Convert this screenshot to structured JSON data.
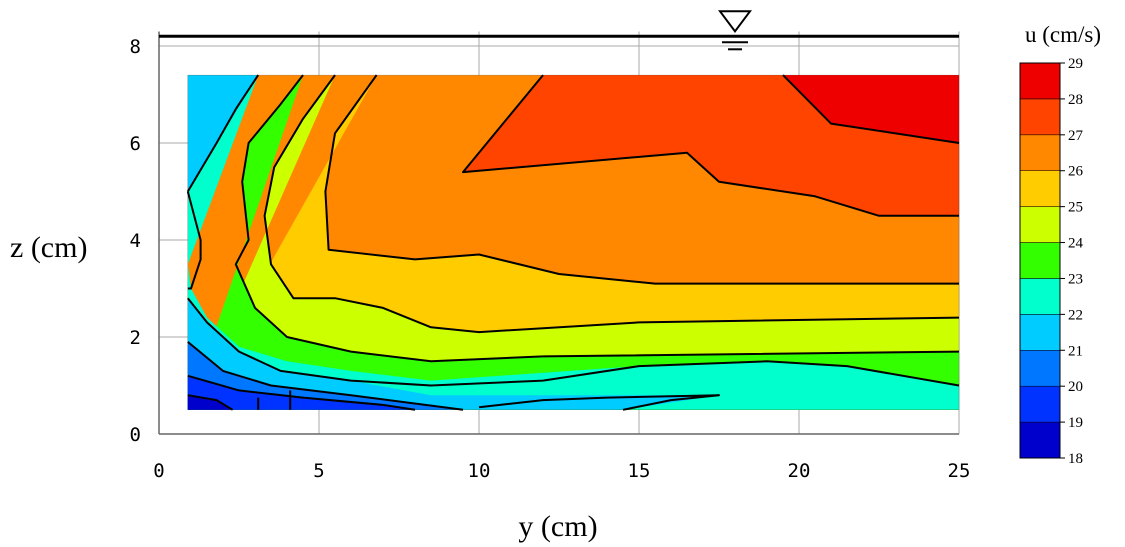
{
  "chart_data": {
    "type": "contour",
    "xlabel": "y (cm)",
    "ylabel": "z (cm)",
    "xlim": [
      0,
      25
    ],
    "ylim": [
      0,
      8.3
    ],
    "x_ticks": [
      "0",
      "5",
      "10",
      "15",
      "20",
      "25"
    ],
    "y_ticks": [
      "0",
      "2",
      "4",
      "6",
      "8"
    ],
    "grid": true,
    "water_surface_z": 8.2,
    "water_surface_symbol_y": 18,
    "data_extent": {
      "x": [
        0.9,
        25
      ],
      "y": [
        0.5,
        7.4
      ]
    },
    "colorbar": {
      "title": "u (cm/s)",
      "levels": [
        "18",
        "19",
        "20",
        "21",
        "22",
        "23",
        "24",
        "25",
        "26",
        "27",
        "28",
        "29"
      ],
      "colors": [
        "#0000cc",
        "#0033ff",
        "#0077ff",
        "#00ccff",
        "#00ffcc",
        "#33ff00",
        "#ccff00",
        "#ffcc00",
        "#ff8800",
        "#ff4400",
        "#ee0000"
      ]
    },
    "regions": [
      {
        "value": 26.5,
        "color": "#ff8800",
        "points": [
          [
            0.9,
            0.5
          ],
          [
            25,
            0.5
          ],
          [
            25,
            7.4
          ],
          [
            0.9,
            7.4
          ]
        ]
      },
      {
        "value": 27.5,
        "color": "#ff4400",
        "points": [
          [
            12,
            7.4
          ],
          [
            19.5,
            7.4
          ],
          [
            21,
            6.4
          ],
          [
            25,
            6.0
          ],
          [
            25,
            4.5
          ],
          [
            22.5,
            4.5
          ],
          [
            20.5,
            4.9
          ],
          [
            17.5,
            5.2
          ],
          [
            16.5,
            5.8
          ],
          [
            9.5,
            5.4
          ]
        ]
      },
      {
        "value": 28.5,
        "color": "#ee0000",
        "points": [
          [
            19.5,
            7.4
          ],
          [
            25,
            7.4
          ],
          [
            25,
            6.0
          ],
          [
            21,
            6.4
          ]
        ]
      },
      {
        "value": 25.5,
        "color": "#ffcc00",
        "points": [
          [
            6.8,
            7.4
          ],
          [
            5.5,
            6.2
          ],
          [
            5.2,
            5.0
          ],
          [
            5.3,
            3.8
          ],
          [
            8,
            3.6
          ],
          [
            10,
            3.7
          ],
          [
            12.5,
            3.3
          ],
          [
            15.5,
            3.1
          ],
          [
            25,
            3.1
          ],
          [
            25,
            0.5
          ],
          [
            0.9,
            0.5
          ]
        ]
      },
      {
        "value": 24.5,
        "color": "#ccff00",
        "points": [
          [
            5.5,
            7.4
          ],
          [
            4.5,
            6.5
          ],
          [
            3.6,
            5.5
          ],
          [
            3.3,
            4.5
          ],
          [
            3.5,
            3.5
          ],
          [
            4.2,
            2.8
          ],
          [
            5.5,
            2.8
          ],
          [
            7,
            2.6
          ],
          [
            8.5,
            2.2
          ],
          [
            10,
            2.1
          ],
          [
            15,
            2.3
          ],
          [
            25,
            2.4
          ],
          [
            25,
            0.5
          ],
          [
            0.9,
            0.5
          ]
        ]
      },
      {
        "value": 23.5,
        "color": "#33ff00",
        "points": [
          [
            4.5,
            7.4
          ],
          [
            3.8,
            6.8
          ],
          [
            2.8,
            6.0
          ],
          [
            2.6,
            5.2
          ],
          [
            2.8,
            4.0
          ],
          [
            2.4,
            3.5
          ],
          [
            3.0,
            2.6
          ],
          [
            4.0,
            2.0
          ],
          [
            6.0,
            1.7
          ],
          [
            8.5,
            1.5
          ],
          [
            12,
            1.6
          ],
          [
            25,
            1.7
          ],
          [
            25,
            0.5
          ],
          [
            0.9,
            0.5
          ]
        ]
      },
      {
        "value": 22.5,
        "color": "#00ffcc",
        "points": [
          [
            3.1,
            7.4
          ],
          [
            2.4,
            6.7
          ],
          [
            1.8,
            6.0
          ],
          [
            0.9,
            5.0
          ],
          [
            0.9,
            0.5
          ],
          [
            25,
            0.5
          ],
          [
            25,
            1.0
          ],
          [
            21.5,
            1.4
          ],
          [
            19,
            1.5
          ],
          [
            15,
            1.4
          ],
          [
            8.5,
            1.1
          ],
          [
            6,
            1.3
          ],
          [
            4,
            1.5
          ],
          [
            2.5,
            1.8
          ],
          [
            1.5,
            2.4
          ],
          [
            1.0,
            3.0
          ],
          [
            0.9,
            3.5
          ]
        ]
      },
      {
        "value": 21.5,
        "color": "#00ccff",
        "points": [
          [
            0.9,
            7.4
          ],
          [
            3.1,
            7.4
          ],
          [
            0.9,
            5.0
          ],
          [
            0.9,
            2.8
          ],
          [
            1.5,
            2.3
          ],
          [
            2.5,
            1.7
          ],
          [
            3.8,
            1.3
          ],
          [
            6,
            1.1
          ],
          [
            8.5,
            0.8
          ],
          [
            12,
            0.8
          ],
          [
            16,
            0.8
          ],
          [
            17.5,
            0.8
          ],
          [
            14.5,
            0.5
          ],
          [
            0.9,
            0.5
          ]
        ]
      },
      {
        "value": 20.5,
        "color": "#0077ff",
        "points": [
          [
            0.9,
            1.9
          ],
          [
            2,
            1.3
          ],
          [
            3.5,
            1.0
          ],
          [
            6,
            0.8
          ],
          [
            9.5,
            0.5
          ],
          [
            0.9,
            0.5
          ]
        ]
      },
      {
        "value": 19.5,
        "color": "#0033ff",
        "points": [
          [
            0.9,
            1.2
          ],
          [
            2.5,
            0.9
          ],
          [
            4.5,
            0.75
          ],
          [
            7,
            0.6
          ],
          [
            8,
            0.5
          ],
          [
            0.9,
            0.5
          ]
        ]
      },
      {
        "value": 18.5,
        "color": "#0000cc",
        "points": [
          [
            0.9,
            0.8
          ],
          [
            1.8,
            0.7
          ],
          [
            2.3,
            0.5
          ],
          [
            0.9,
            0.5
          ]
        ]
      }
    ],
    "contour_lines": [
      [
        [
          12,
          7.4
        ],
        [
          9.5,
          5.4
        ],
        [
          16.5,
          5.8
        ],
        [
          17.5,
          5.2
        ],
        [
          20.5,
          4.9
        ],
        [
          22.5,
          4.5
        ],
        [
          25,
          4.5
        ]
      ],
      [
        [
          19.5,
          7.4
        ],
        [
          21,
          6.4
        ],
        [
          25,
          6.0
        ]
      ],
      [
        [
          6.8,
          7.4
        ],
        [
          5.5,
          6.2
        ],
        [
          5.2,
          5.0
        ],
        [
          5.3,
          3.8
        ],
        [
          8,
          3.6
        ],
        [
          10,
          3.7
        ],
        [
          12.5,
          3.3
        ],
        [
          15.5,
          3.1
        ],
        [
          25,
          3.1
        ]
      ],
      [
        [
          5.5,
          7.4
        ],
        [
          4.5,
          6.5
        ],
        [
          3.6,
          5.5
        ],
        [
          3.3,
          4.5
        ],
        [
          3.5,
          3.5
        ],
        [
          4.2,
          2.8
        ],
        [
          5.5,
          2.8
        ],
        [
          7,
          2.6
        ],
        [
          8.5,
          2.2
        ],
        [
          10,
          2.1
        ],
        [
          15,
          2.3
        ],
        [
          25,
          2.4
        ]
      ],
      [
        [
          4.5,
          7.4
        ],
        [
          3.8,
          6.8
        ],
        [
          2.8,
          6.0
        ],
        [
          2.6,
          5.2
        ],
        [
          2.8,
          4.0
        ],
        [
          2.4,
          3.5
        ],
        [
          3.0,
          2.6
        ],
        [
          4.0,
          2.0
        ],
        [
          6.0,
          1.7
        ],
        [
          8.5,
          1.5
        ],
        [
          12,
          1.6
        ],
        [
          25,
          1.7
        ]
      ],
      [
        [
          3.1,
          7.4
        ],
        [
          2.4,
          6.7
        ],
        [
          1.8,
          6.0
        ],
        [
          0.9,
          5.0
        ]
      ],
      [
        [
          0.9,
          5.0
        ],
        [
          1.3,
          4.0
        ],
        [
          1.3,
          3.6
        ],
        [
          1.0,
          3.0
        ],
        [
          0.9,
          3.0
        ]
      ],
      [
        [
          0.9,
          2.8
        ],
        [
          1.5,
          2.3
        ],
        [
          2.5,
          1.7
        ],
        [
          3.8,
          1.3
        ],
        [
          6,
          1.1
        ],
        [
          8.5,
          1.0
        ],
        [
          12,
          1.1
        ],
        [
          15,
          1.4
        ],
        [
          19,
          1.5
        ],
        [
          21.5,
          1.4
        ],
        [
          25,
          1.0
        ]
      ],
      [
        [
          0.9,
          1.9
        ],
        [
          2,
          1.3
        ],
        [
          3.5,
          1.0
        ],
        [
          6,
          0.8
        ],
        [
          9.5,
          0.5
        ]
      ],
      [
        [
          14.5,
          0.5
        ],
        [
          16,
          0.7
        ],
        [
          17.5,
          0.8
        ],
        [
          14,
          0.75
        ],
        [
          12,
          0.7
        ],
        [
          10,
          0.55
        ]
      ],
      [
        [
          0.9,
          1.2
        ],
        [
          2.5,
          0.9
        ],
        [
          4.5,
          0.75
        ],
        [
          7,
          0.6
        ],
        [
          8,
          0.5
        ]
      ],
      [
        [
          4.1,
          0.5
        ],
        [
          4.1,
          0.9
        ]
      ],
      [
        [
          3.1,
          0.5
        ],
        [
          3.1,
          0.75
        ]
      ],
      [
        [
          0.9,
          0.8
        ],
        [
          1.8,
          0.7
        ],
        [
          2.3,
          0.5
        ]
      ]
    ]
  }
}
